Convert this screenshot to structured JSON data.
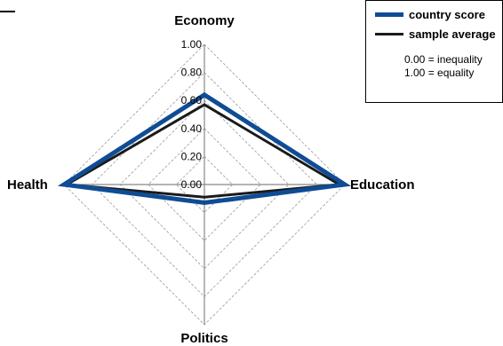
{
  "chart_data": {
    "type": "radar",
    "axes": [
      "Economy",
      "Education",
      "Politics",
      "Health"
    ],
    "ticks": [
      "0.00",
      "0.20",
      "0.40",
      "0.60",
      "0.80",
      "1.00"
    ],
    "tick_values": [
      0,
      0.2,
      0.4,
      0.6,
      0.8,
      1.0
    ],
    "range": [
      0,
      1
    ],
    "grid": true,
    "legend_position": "top-right",
    "series": [
      {
        "name": "country score",
        "values": [
          0.64,
          1.0,
          0.13,
          1.0
        ],
        "color": "#0f4c96"
      },
      {
        "name": "sample average",
        "values": [
          0.57,
          0.96,
          0.09,
          0.98
        ],
        "color": "#1a1a1a"
      }
    ],
    "notes": [
      "0.00 = inequality",
      "1.00 = equality"
    ]
  }
}
